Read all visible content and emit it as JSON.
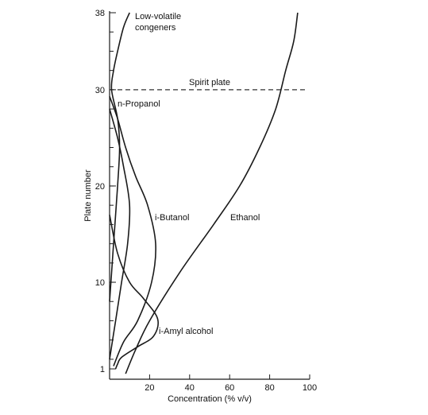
{
  "chart_data": {
    "type": "line",
    "title": "",
    "xlabel": "Concentration (% v/v)",
    "ylabel": "Plate number",
    "xlim": [
      0,
      100
    ],
    "ylim": [
      1,
      38
    ],
    "x_ticks": [
      20,
      40,
      60,
      80,
      100
    ],
    "y_ticks": [
      1,
      10,
      20,
      30,
      38
    ],
    "grid": false,
    "legend": "none",
    "reference_lines": [
      {
        "label": "Spirit plate",
        "y": 30,
        "style": "dashed"
      }
    ],
    "series": [
      {
        "name": "Low-volatile congeners",
        "points": [
          [
            0,
            8
          ],
          [
            2,
            14
          ],
          [
            4,
            20
          ],
          [
            5,
            24
          ],
          [
            4,
            27
          ],
          [
            1,
            30
          ],
          [
            2,
            32
          ],
          [
            4,
            34
          ],
          [
            7,
            36.5
          ],
          [
            10,
            38
          ]
        ]
      },
      {
        "name": "n-Propanol",
        "points": [
          [
            0,
            28
          ],
          [
            4,
            25
          ],
          [
            7,
            22
          ],
          [
            10,
            18
          ],
          [
            9,
            14
          ],
          [
            6,
            10
          ],
          [
            3,
            6
          ],
          [
            0,
            2
          ]
        ]
      },
      {
        "name": "i-Butanol",
        "points": [
          [
            0,
            29.3
          ],
          [
            4,
            27
          ],
          [
            8,
            24
          ],
          [
            13,
            21
          ],
          [
            19,
            18
          ],
          [
            23,
            14
          ],
          [
            21,
            10
          ],
          [
            14,
            6
          ],
          [
            7,
            3.8
          ],
          [
            2,
            1.3
          ]
        ]
      },
      {
        "name": "i-Amyl alcohol",
        "points": [
          [
            0,
            17
          ],
          [
            4,
            13
          ],
          [
            10,
            10
          ],
          [
            17,
            8.3
          ],
          [
            24,
            6.2
          ],
          [
            22,
            4.4
          ],
          [
            14,
            3.3
          ],
          [
            6,
            2.2
          ],
          [
            4,
            1.5
          ],
          [
            3,
            1
          ]
        ]
      },
      {
        "name": "Ethanol",
        "points": [
          [
            8,
            0.5
          ],
          [
            13,
            3
          ],
          [
            20,
            6
          ],
          [
            35,
            11
          ],
          [
            52,
            16
          ],
          [
            65,
            20
          ],
          [
            75,
            24
          ],
          [
            83,
            28
          ],
          [
            88,
            32
          ],
          [
            92,
            35
          ],
          [
            94,
            38
          ]
        ]
      }
    ],
    "annotations": [
      {
        "text": "Low-volatile congeners",
        "series": "Low-volatile congeners"
      },
      {
        "text": "n-Propanol",
        "series": "n-Propanol"
      },
      {
        "text": "i-Butanol",
        "series": "i-Butanol"
      },
      {
        "text": "i-Amyl alcohol",
        "series": "i-Amyl alcohol"
      },
      {
        "text": "Ethanol",
        "series": "Ethanol"
      },
      {
        "text": "Spirit plate",
        "series": "reference"
      }
    ],
    "label_text": {
      "low_volatile_line1": "Low-volatile",
      "low_volatile_line2": "congeners",
      "n_propanol": "n-Propanol",
      "i_butanol": "i-Butanol",
      "i_amyl": "i-Amyl alcohol",
      "ethanol": "Ethanol",
      "spirit_plate": "Spirit plate"
    }
  }
}
